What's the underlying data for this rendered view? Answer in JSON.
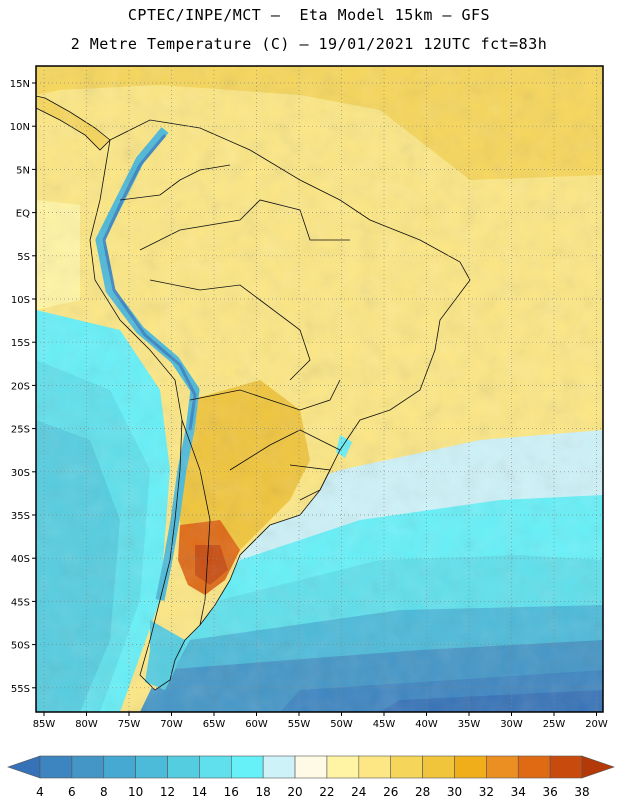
{
  "header": {
    "line1": "CPTEC/INPE/MCT –  Eta Model 15km – GFS",
    "line2": "2 Metre Temperature (C) – 19/01/2021 12UTC fct=83h"
  },
  "map": {
    "lat_labels": [
      "15N",
      "10N",
      "5N",
      "EQ",
      "5S",
      "10S",
      "15S",
      "20S",
      "25S",
      "30S",
      "35S",
      "40S",
      "45S",
      "50S",
      "55S"
    ],
    "lon_labels": [
      "85W",
      "80W",
      "75W",
      "70W",
      "65W",
      "60W",
      "55W",
      "50W",
      "45W",
      "40W",
      "35W",
      "30W",
      "25W",
      "20W"
    ],
    "grid_lines": true
  },
  "colorbar": {
    "labels": [
      "4",
      "6",
      "8",
      "10",
      "12",
      "14",
      "16",
      "18",
      "20",
      "22",
      "24",
      "26",
      "28",
      "30",
      "32",
      "34",
      "36",
      "38"
    ],
    "colors": [
      "#3672b7",
      "#3d85c1",
      "#4496c7",
      "#45a9d2",
      "#4cbad9",
      "#55cde0",
      "#5fe0ec",
      "#66f0f8",
      "#cdf2f8",
      "#fffae6",
      "#fff4a3",
      "#fce784",
      "#f6d65a",
      "#f0c53c",
      "#efae1a",
      "#eb8f22",
      "#e06a14",
      "#c84a0d",
      "#b33908"
    ]
  }
}
